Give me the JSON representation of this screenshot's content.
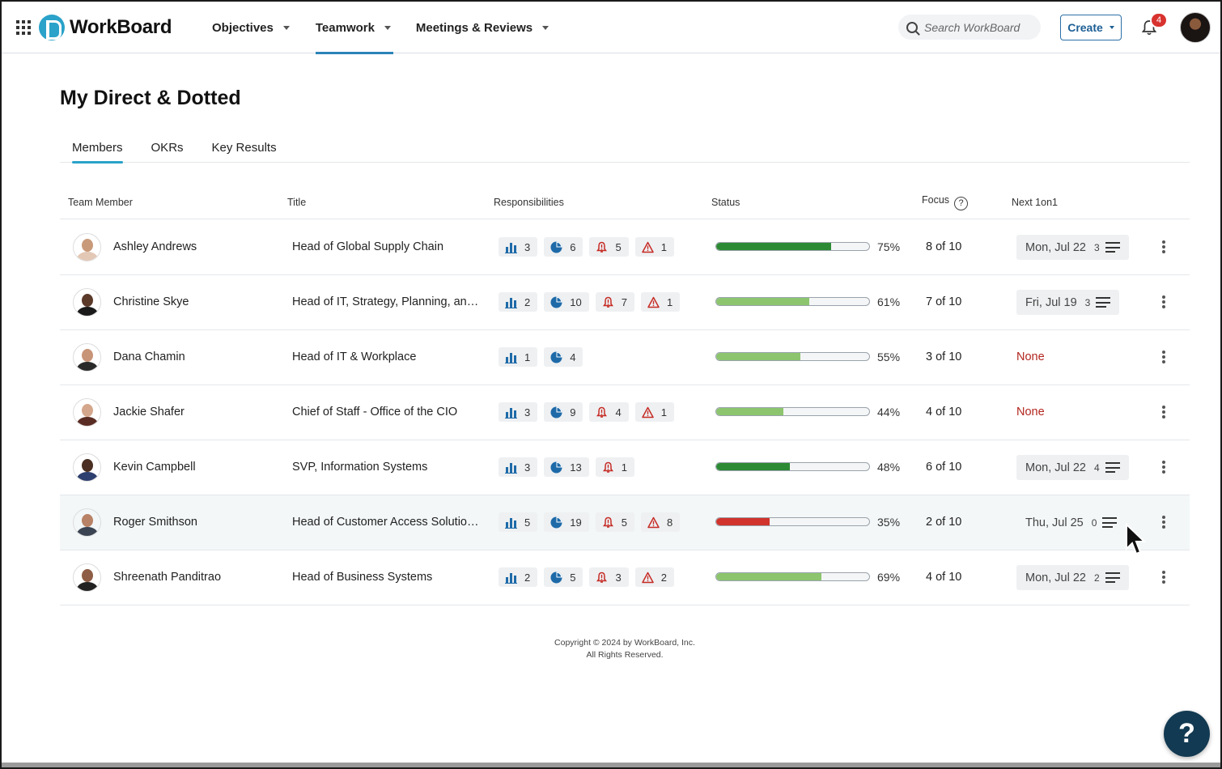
{
  "header": {
    "logo": "WorkBoard",
    "nav": [
      {
        "label": "Objectives"
      },
      {
        "label": "Teamwork"
      },
      {
        "label": "Meetings & Reviews"
      }
    ],
    "search_placeholder": "Search WorkBoard",
    "create_label": "Create",
    "notifications_count": "4"
  },
  "page": {
    "title": "My Direct & Dotted",
    "tabs": [
      "Members",
      "OKRs",
      "Key Results"
    ]
  },
  "table": {
    "columns": {
      "member": "Team Member",
      "title": "Title",
      "responsibilities": "Responsibilities",
      "status": "Status",
      "focus": "Focus",
      "next": "Next 1on1"
    },
    "rows": [
      {
        "name": "Ashley Andrews",
        "title": "Head of Global Supply Chain",
        "objectives": "3",
        "key_results": "6",
        "alerts": "5",
        "risks": "1",
        "status_pct": "75%",
        "status_value": 75,
        "status_color": "#2d8a34",
        "focus": "8 of 10",
        "next_date": "Mon, Jul 22",
        "next_count": "3",
        "skin": "#c99a7a",
        "shirt": "#e3c8b6"
      },
      {
        "name": "Christine Skye",
        "title": "Head of IT, Strategy, Planning, and …",
        "objectives": "2",
        "key_results": "10",
        "alerts": "7",
        "risks": "1",
        "status_pct": "61%",
        "status_value": 61,
        "status_color": "#8cc56e",
        "focus": "7 of 10",
        "next_date": "Fri, Jul 19",
        "next_count": "3",
        "skin": "#5b3a2a",
        "shirt": "#1a1a1a"
      },
      {
        "name": "Dana Chamin",
        "title": "Head of IT & Workplace",
        "objectives": "1",
        "key_results": "4",
        "alerts": "",
        "risks": "",
        "status_pct": "55%",
        "status_value": 55,
        "status_color": "#8cc56e",
        "focus": "3 of 10",
        "next_date": "",
        "next_count": "",
        "next_none": "None",
        "skin": "#c89478",
        "shirt": "#2a2a2a"
      },
      {
        "name": "Jackie Shafer",
        "title": "Chief of Staff - Office of the CIO",
        "objectives": "3",
        "key_results": "9",
        "alerts": "4",
        "risks": "1",
        "status_pct": "44%",
        "status_value": 44,
        "status_color": "#8cc56e",
        "focus": "4 of 10",
        "next_date": "",
        "next_count": "",
        "next_none": "None",
        "skin": "#d4a78c",
        "shirt": "#5a2d24"
      },
      {
        "name": "Kevin Campbell",
        "title": "SVP, Information Systems",
        "objectives": "3",
        "key_results": "13",
        "alerts": "1",
        "risks": "",
        "status_pct": "48%",
        "status_value": 48,
        "status_color": "#2d8a34",
        "focus": "6 of 10",
        "next_date": "Mon, Jul 22",
        "next_count": "4",
        "skin": "#4a2f22",
        "shirt": "#2d3f6e"
      },
      {
        "name": "Roger Smithson",
        "title": "Head of Customer Access Solution…",
        "objectives": "5",
        "key_results": "19",
        "alerts": "5",
        "risks": "8",
        "status_pct": "35%",
        "status_value": 35,
        "status_color": "#d0342c",
        "focus": "2 of 10",
        "next_date": "Thu, Jul 25",
        "next_count": "0",
        "skin": "#b88266",
        "shirt": "#3b4452"
      },
      {
        "name": "Shreenath Panditrao",
        "title": "Head of Business Systems",
        "objectives": "2",
        "key_results": "5",
        "alerts": "3",
        "risks": "2",
        "status_pct": "69%",
        "status_value": 69,
        "status_color": "#8cc56e",
        "focus": "4 of 10",
        "next_date": "Mon, Jul 22",
        "next_count": "2",
        "skin": "#8e5d45",
        "shirt": "#222222"
      }
    ]
  },
  "footer": {
    "line1": "Copyright © 2024 by WorkBoard, Inc.",
    "line2": "All Rights Reserved."
  },
  "help_label": "?"
}
